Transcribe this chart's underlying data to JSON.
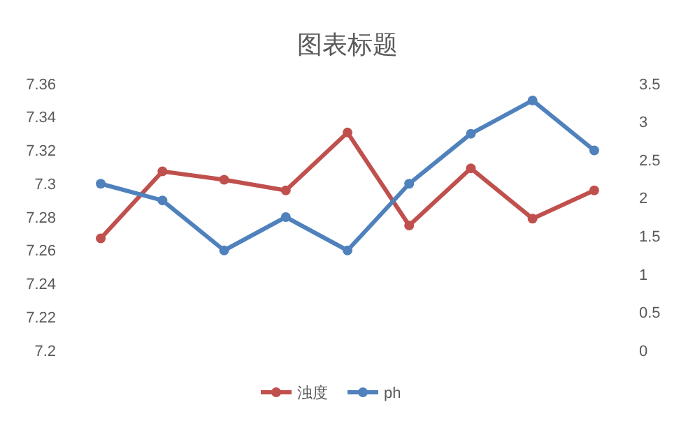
{
  "chart_data": {
    "type": "line",
    "title": "图表标题",
    "categories": [
      null,
      null,
      null,
      null,
      null,
      null,
      null,
      null,
      null
    ],
    "series": [
      {
        "name": "浊度",
        "color": "#c0504d",
        "axis": "y2",
        "values": [
          1.47,
          2.35,
          2.24,
          2.1,
          2.86,
          1.64,
          2.39,
          1.73,
          2.1
        ]
      },
      {
        "name": "ph",
        "color": "#4f81bd",
        "values": [
          7.3,
          7.29,
          7.26,
          7.28,
          7.26,
          7.3,
          7.33,
          7.35,
          7.32
        ]
      }
    ],
    "ylim": [
      7.2,
      7.36
    ],
    "yticks": [
      7.2,
      7.22,
      7.24,
      7.26,
      7.28,
      7.3,
      7.32,
      7.34,
      7.36
    ],
    "y2lim": [
      0,
      3.5
    ],
    "y2ticks": [
      0,
      0.5,
      1,
      1.5,
      2,
      2.5,
      3,
      3.5
    ],
    "marker": "circle",
    "line_style": "solid",
    "legend": "bottom",
    "grid": false
  }
}
